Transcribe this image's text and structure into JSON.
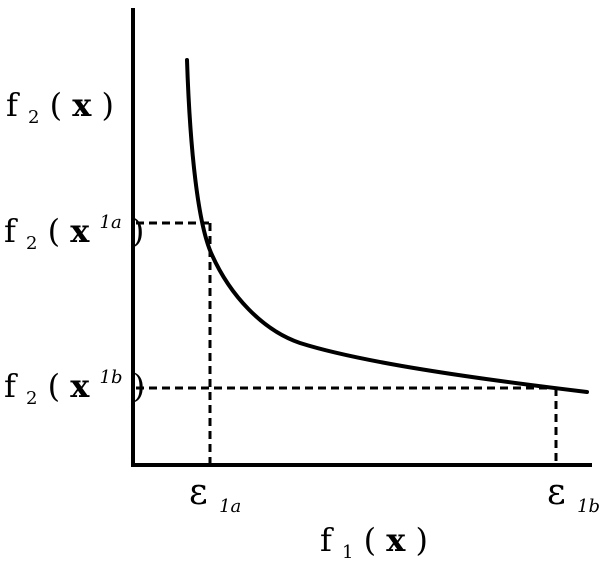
{
  "axes": {
    "y_label": {
      "base": "f",
      "sub": "2",
      "open": "(",
      "var": "x",
      "close": ")"
    },
    "x_label": {
      "base": "f",
      "sub": "1",
      "open": "(",
      "var": "x",
      "close": ")"
    }
  },
  "levels": [
    {
      "base": "f",
      "sub": "2",
      "open": "(",
      "var": "x",
      "sup": "1a",
      "close": ")"
    },
    {
      "base": "f",
      "sub": "2",
      "open": "(",
      "var": "x",
      "sup": "1b",
      "close": ")"
    }
  ],
  "epsilons": [
    {
      "symbol": "ε",
      "sub": "1a"
    },
    {
      "symbol": "ε",
      "sub": "1b"
    }
  ],
  "colors": {
    "ink": "#000000",
    "background": "#ffffff"
  }
}
